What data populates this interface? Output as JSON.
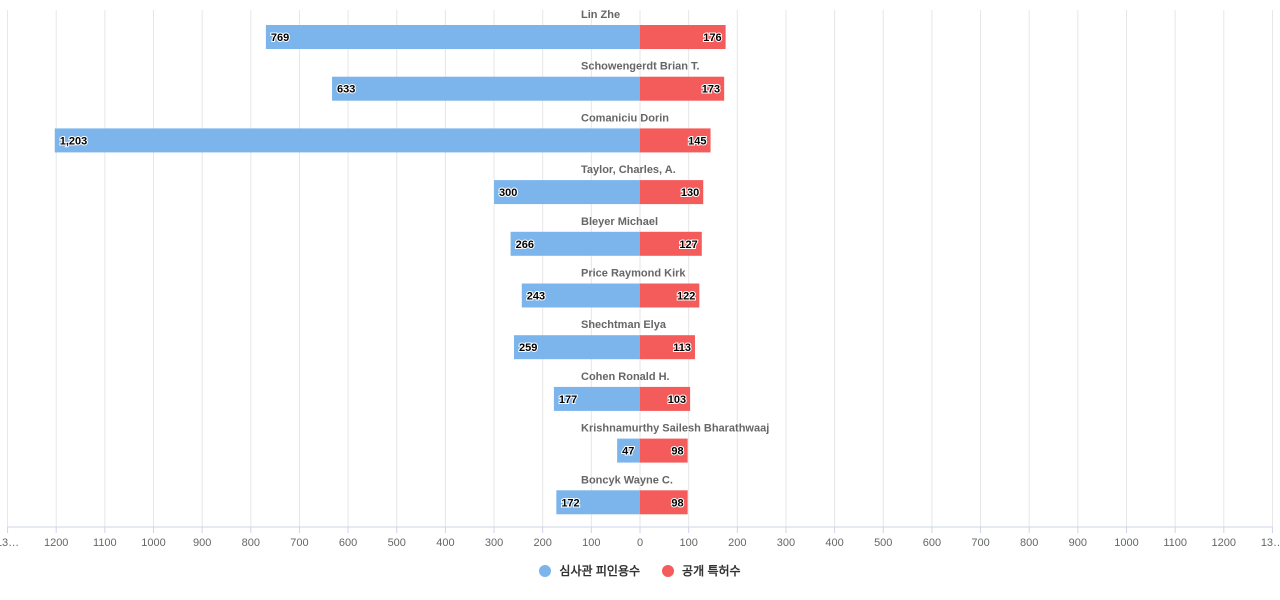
{
  "chart_data": {
    "type": "bar",
    "orientation": "horizontal-diverging",
    "categories": [
      "Lin Zhe",
      "Schowengerdt Brian T.",
      "Comaniciu Dorin",
      "Taylor, Charles, A.",
      "Bleyer Michael",
      "Price Raymond Kirk",
      "Shechtman Elya",
      "Cohen Ronald H.",
      "Krishnamurthy Sailesh Bharathwaaj",
      "Boncyk Wayne C."
    ],
    "series": [
      {
        "name": "심사관 피인용수",
        "color": "#7cb5ec",
        "side": "left",
        "values": [
          769,
          633,
          1203,
          300,
          266,
          243,
          259,
          177,
          47,
          172
        ],
        "labels": [
          "769",
          "633",
          "1,203",
          "300",
          "266",
          "243",
          "259",
          "177",
          "47",
          "172"
        ]
      },
      {
        "name": "공개 특허수",
        "color": "#f45b5b",
        "side": "right",
        "values": [
          176,
          173,
          145,
          130,
          127,
          122,
          113,
          103,
          98,
          98
        ],
        "labels": [
          "176",
          "173",
          "145",
          "130",
          "127",
          "122",
          "113",
          "103",
          "98",
          "98"
        ]
      }
    ],
    "xlim": [
      -1300,
      1300
    ],
    "x_tick_labels": [
      "13…",
      "1200",
      "1100",
      "1000",
      "900",
      "800",
      "700",
      "600",
      "500",
      "400",
      "300",
      "200",
      "100",
      "0",
      "100",
      "200",
      "300",
      "400",
      "500",
      "600",
      "700",
      "800",
      "900",
      "1000",
      "1100",
      "1200",
      "13…"
    ],
    "grid": true,
    "legend_position": "bottom-center"
  }
}
